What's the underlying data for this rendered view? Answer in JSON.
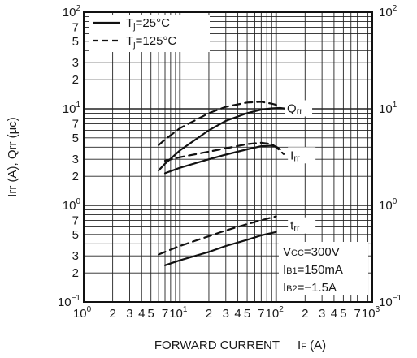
{
  "chart_data": {
    "type": "line",
    "xscale": "log",
    "yscale": "log",
    "xlim": [
      1,
      1000
    ],
    "ylim": [
      0.1,
      100
    ],
    "grid": true,
    "x_tick_labels": [
      {
        "x": 1,
        "base": "10",
        "exp": "0"
      },
      {
        "x": 2,
        "text": "2"
      },
      {
        "x": 3,
        "text": "3"
      },
      {
        "x": 4,
        "text": "4"
      },
      {
        "x": 5,
        "text": "5"
      },
      {
        "x": 7,
        "text": "7"
      },
      {
        "x": 10,
        "base": "10",
        "exp": "1"
      },
      {
        "x": 20,
        "text": "2"
      },
      {
        "x": 30,
        "text": "3"
      },
      {
        "x": 40,
        "text": "4"
      },
      {
        "x": 50,
        "text": "5"
      },
      {
        "x": 70,
        "text": "7"
      },
      {
        "x": 100,
        "base": "10",
        "exp": "2"
      },
      {
        "x": 200,
        "text": "2"
      },
      {
        "x": 300,
        "text": "3"
      },
      {
        "x": 400,
        "text": "4"
      },
      {
        "x": 500,
        "text": "5"
      },
      {
        "x": 700,
        "text": "7"
      },
      {
        "x": 1000,
        "base": "10",
        "exp": "3"
      }
    ],
    "y_tick_labels": [
      {
        "y": 100,
        "base": "10",
        "exp": "2"
      },
      {
        "y": 70,
        "text": "7"
      },
      {
        "y": 50,
        "text": "5"
      },
      {
        "y": 30,
        "text": "3"
      },
      {
        "y": 20,
        "text": "2"
      },
      {
        "y": 10,
        "base": "10",
        "exp": "1"
      },
      {
        "y": 7,
        "text": "7"
      },
      {
        "y": 5,
        "text": "5"
      },
      {
        "y": 3,
        "text": "3"
      },
      {
        "y": 2,
        "text": "2"
      },
      {
        "y": 1,
        "base": "10",
        "exp": "0"
      },
      {
        "y": 0.7,
        "text": "7"
      },
      {
        "y": 0.5,
        "text": "5"
      },
      {
        "y": 0.3,
        "text": "3"
      },
      {
        "y": 0.2,
        "text": "2"
      },
      {
        "y": 0.1,
        "base": "10",
        "exp": "−1"
      }
    ],
    "right_tick_labels": [
      {
        "y": 100,
        "base": "10",
        "exp": "2"
      },
      {
        "y": 10,
        "base": "10",
        "exp": "1"
      },
      {
        "y": 1,
        "base": "10",
        "exp": "0"
      },
      {
        "y": 0.1,
        "base": "10",
        "exp": "−1"
      }
    ],
    "xlabel": {
      "main": "FORWARD CURRENT",
      "sym": "I",
      "sub": "F",
      "unit": "(A)"
    },
    "ylabel": {
      "text": "Irr (A), Qrr (μc)"
    },
    "legend": {
      "placement": "top-left",
      "entries": [
        {
          "style": "solid",
          "pre": "T",
          "sub": "j",
          "post": "=25°C"
        },
        {
          "style": "dashed",
          "pre": "T",
          "sub": "j",
          "post": "=125°C"
        }
      ]
    },
    "curve_labels": [
      {
        "series": "Irr",
        "pre": "I",
        "sub": "rr",
        "x": 130,
        "y": 3.3
      },
      {
        "series": "Qrr",
        "pre": "Q",
        "sub": "rr",
        "x": 120,
        "y": 10.1
      },
      {
        "series": "trr",
        "pre": "t",
        "sub": "rr",
        "x": 130,
        "y": 0.62
      }
    ],
    "conditions": [
      {
        "pre": "V",
        "sub": "CC",
        "post": "=300V"
      },
      {
        "pre": "I",
        "sub": "B1",
        "post": "=150mA"
      },
      {
        "pre": "I",
        "sub": "B2",
        "post": "=−1.5A"
      }
    ],
    "series": [
      {
        "group": "Irr",
        "style": "dashed",
        "points": [
          [
            7,
            2.9
          ],
          [
            10,
            3.15
          ],
          [
            20,
            3.6
          ],
          [
            30,
            3.9
          ],
          [
            50,
            4.3
          ],
          [
            70,
            4.45
          ],
          [
            90,
            4.3
          ],
          [
            100,
            4.0
          ],
          [
            120,
            3.4
          ]
        ]
      },
      {
        "group": "Irr",
        "style": "solid",
        "points": [
          [
            7,
            2.15
          ],
          [
            10,
            2.45
          ],
          [
            20,
            3.0
          ],
          [
            30,
            3.35
          ],
          [
            50,
            3.8
          ],
          [
            70,
            4.1
          ],
          [
            90,
            4.15
          ],
          [
            100,
            4.05
          ],
          [
            110,
            3.8
          ]
        ]
      },
      {
        "group": "Qrr",
        "style": "dashed",
        "points": [
          [
            6,
            4.2
          ],
          [
            7,
            4.8
          ],
          [
            10,
            6.3
          ],
          [
            20,
            9.0
          ],
          [
            30,
            10.5
          ],
          [
            50,
            11.6
          ],
          [
            70,
            11.8
          ],
          [
            90,
            11.3
          ],
          [
            110,
            10.7
          ]
        ]
      },
      {
        "group": "Qrr",
        "style": "solid",
        "points": [
          [
            6,
            2.3
          ],
          [
            7,
            2.7
          ],
          [
            10,
            3.7
          ],
          [
            20,
            6.0
          ],
          [
            30,
            7.5
          ],
          [
            50,
            9.0
          ],
          [
            70,
            9.8
          ],
          [
            90,
            10.1
          ],
          [
            110,
            10.2
          ],
          [
            130,
            10.0
          ]
        ]
      },
      {
        "group": "trr",
        "style": "dashed",
        "points": [
          [
            6,
            0.31
          ],
          [
            7,
            0.33
          ],
          [
            10,
            0.38
          ],
          [
            20,
            0.48
          ],
          [
            30,
            0.55
          ],
          [
            50,
            0.64
          ],
          [
            70,
            0.7
          ],
          [
            100,
            0.77
          ]
        ]
      },
      {
        "group": "trr",
        "style": "solid",
        "points": [
          [
            7,
            0.24
          ],
          [
            10,
            0.27
          ],
          [
            20,
            0.33
          ],
          [
            30,
            0.38
          ],
          [
            50,
            0.44
          ],
          [
            70,
            0.49
          ],
          [
            100,
            0.53
          ]
        ]
      }
    ]
  }
}
